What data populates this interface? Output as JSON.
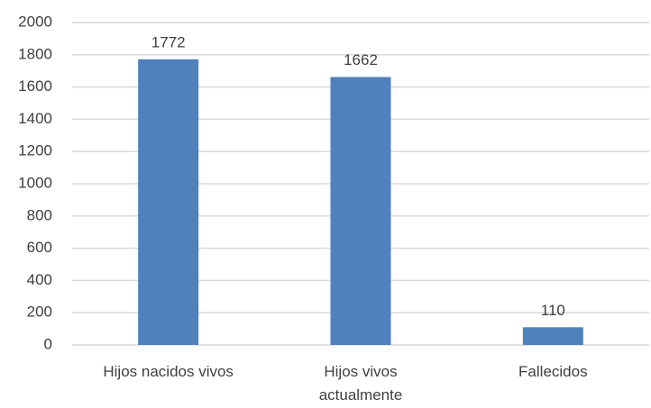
{
  "chart_data": {
    "type": "bar",
    "categories": [
      "Hijos nacidos vivos",
      "Hijos vivos actualmente",
      "Fallecidos"
    ],
    "values": [
      1772,
      1662,
      110
    ],
    "color": "#4f81bd",
    "ylim": [
      0,
      2000
    ],
    "yticks": [
      0,
      200,
      400,
      600,
      800,
      1000,
      1200,
      1400,
      1600,
      1800,
      2000
    ],
    "grid": true,
    "data_labels": true
  }
}
